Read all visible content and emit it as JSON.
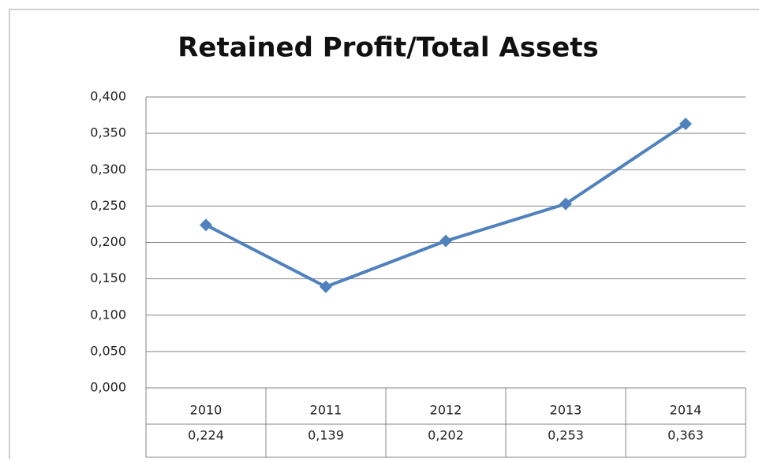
{
  "chart_data": {
    "type": "line",
    "title": "Retained Profit/Total Assets",
    "categories": [
      "2010",
      "2011",
      "2012",
      "2013",
      "2014"
    ],
    "values": [
      0.224,
      0.139,
      0.202,
      0.253,
      0.363
    ],
    "value_labels": [
      "0,224",
      "0,139",
      "0,202",
      "0,253",
      "0,363"
    ],
    "color": "#4f81bd",
    "ylim": [
      0,
      0.4
    ],
    "yticks": [
      {
        "value": 0,
        "label": "0,000"
      },
      {
        "value": 0.05,
        "label": "0,050"
      },
      {
        "value": 0.1,
        "label": "0,100"
      },
      {
        "value": 0.15,
        "label": "0,150"
      },
      {
        "value": 0.2,
        "label": "0,200"
      },
      {
        "value": 0.25,
        "label": "0,250"
      },
      {
        "value": 0.3,
        "label": "0,300"
      },
      {
        "value": 0.35,
        "label": "0,350"
      },
      {
        "value": 0.4,
        "label": "0,400"
      }
    ],
    "grid": true
  }
}
